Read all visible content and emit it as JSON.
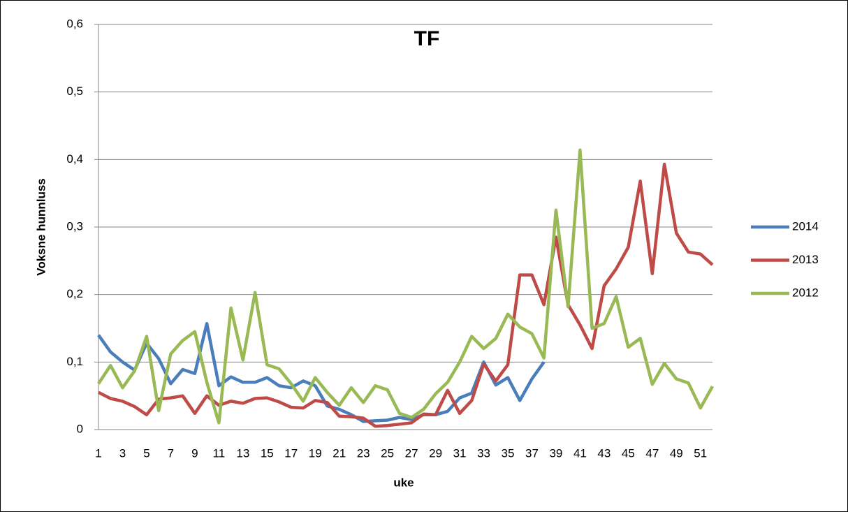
{
  "chart_data": {
    "type": "line",
    "title": "TF",
    "x_label": "uke",
    "y_label": "Voksne hunnluss",
    "categories": [
      "1",
      null,
      "3",
      null,
      "5",
      null,
      "7",
      null,
      "9",
      null,
      "11",
      null,
      "13",
      null,
      "15",
      null,
      "17",
      null,
      "19",
      null,
      "21",
      null,
      "23",
      null,
      "25",
      null,
      "27",
      null,
      "29",
      null,
      "31",
      null,
      "33",
      null,
      "35",
      null,
      "37",
      null,
      "39",
      null,
      "41",
      null,
      "43",
      null,
      "45",
      null,
      "47",
      null,
      "49",
      null,
      "51",
      null
    ],
    "series": [
      {
        "name": "2014",
        "color": "#4a7ebb",
        "values": [
          0.14,
          0.115,
          0.1,
          0.088,
          0.128,
          0.105,
          0.068,
          0.089,
          0.083,
          0.157,
          0.065,
          0.078,
          0.07,
          0.07,
          0.077,
          0.065,
          0.062,
          0.072,
          0.065,
          0.035,
          0.03,
          0.022,
          0.012,
          0.013,
          0.014,
          0.018,
          0.015,
          0.022,
          0.022,
          0.027,
          0.047,
          0.054,
          0.1,
          0.066,
          0.077,
          0.043,
          0.075,
          0.1,
          null,
          null,
          null,
          null,
          null,
          null,
          null,
          null,
          null,
          null,
          null,
          null,
          null,
          null
        ]
      },
      {
        "name": "2013",
        "color": "#be4b48",
        "values": [
          0.055,
          0.046,
          0.042,
          0.034,
          0.022,
          0.045,
          0.047,
          0.05,
          0.024,
          0.05,
          0.036,
          0.042,
          0.039,
          0.046,
          0.047,
          0.041,
          0.033,
          0.032,
          0.043,
          0.04,
          0.02,
          0.019,
          0.017,
          0.005,
          0.006,
          0.008,
          0.01,
          0.023,
          0.022,
          0.058,
          0.024,
          0.043,
          0.097,
          0.072,
          0.096,
          0.229,
          0.229,
          0.185,
          0.285,
          0.185,
          0.155,
          0.12,
          0.213,
          0.238,
          0.27,
          0.368,
          0.231,
          0.393,
          0.291,
          0.263,
          0.26,
          0.244
        ]
      },
      {
        "name": "2012",
        "color": "#98b954",
        "values": [
          0.068,
          0.095,
          0.062,
          0.087,
          0.138,
          0.028,
          0.112,
          0.132,
          0.145,
          0.07,
          0.01,
          0.18,
          0.103,
          0.203,
          0.096,
          0.09,
          0.068,
          0.042,
          0.077,
          0.055,
          0.036,
          0.062,
          0.04,
          0.065,
          0.059,
          0.024,
          0.018,
          0.03,
          0.053,
          0.07,
          0.1,
          0.138,
          0.12,
          0.135,
          0.171,
          0.152,
          0.142,
          0.106,
          0.325,
          0.182,
          0.414,
          0.15,
          0.157,
          0.197,
          0.122,
          0.135,
          0.067,
          0.098,
          0.075,
          0.069,
          0.032,
          0.064
        ]
      }
    ],
    "ylim": [
      0,
      0.6
    ],
    "yticks": [
      0,
      {
        "value": 0.1,
        "label": "0,1"
      },
      {
        "value": 0.2,
        "label": "0,2"
      },
      {
        "value": 0.3,
        "label": "0,3"
      },
      {
        "value": 0.4,
        "label": "0,4"
      },
      {
        "value": 0.5,
        "label": "0,5"
      },
      {
        "value": 0.6,
        "label": "0,6"
      }
    ],
    "grid": true,
    "legend": "right"
  }
}
